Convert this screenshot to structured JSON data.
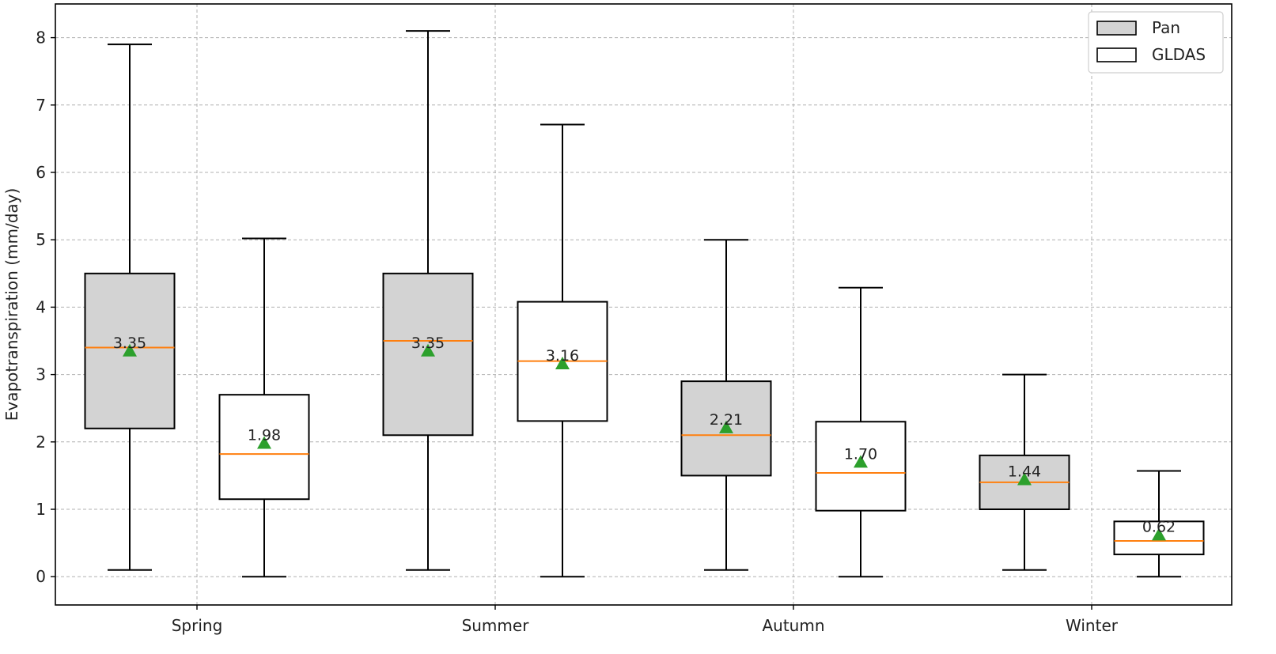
{
  "chart_data": {
    "type": "boxplot",
    "title": "",
    "xlabel": "",
    "ylabel": "Evapotranspiration (mm/day)",
    "ylim": [
      -0.42,
      8.5
    ],
    "yticks": [
      0,
      1,
      2,
      3,
      4,
      5,
      6,
      7,
      8
    ],
    "grid": true,
    "legend_position": "top-right",
    "categories": [
      "Spring",
      "Summer",
      "Autumn",
      "Winter"
    ],
    "series": [
      {
        "name": "Pan",
        "fill": "#d3d3d3",
        "boxes": [
          {
            "whisker_low": 0.1,
            "q1": 2.2,
            "median": 3.4,
            "q3": 4.5,
            "whisker_high": 7.9,
            "mean": 3.35,
            "mean_label": "3.35"
          },
          {
            "whisker_low": 0.1,
            "q1": 2.1,
            "median": 3.5,
            "q3": 4.5,
            "whisker_high": 8.1,
            "mean": 3.35,
            "mean_label": "3.35"
          },
          {
            "whisker_low": 0.1,
            "q1": 1.5,
            "median": 2.1,
            "q3": 2.9,
            "whisker_high": 5.0,
            "mean": 2.21,
            "mean_label": "2.21"
          },
          {
            "whisker_low": 0.1,
            "q1": 1.0,
            "median": 1.4,
            "q3": 1.8,
            "whisker_high": 3.0,
            "mean": 1.44,
            "mean_label": "1.44"
          }
        ]
      },
      {
        "name": "GLDAS",
        "fill": "#ffffff",
        "boxes": [
          {
            "whisker_low": 0.0,
            "q1": 1.15,
            "median": 1.82,
            "q3": 2.7,
            "whisker_high": 5.02,
            "mean": 1.98,
            "mean_label": "1.98"
          },
          {
            "whisker_low": 0.0,
            "q1": 2.31,
            "median": 3.2,
            "q3": 4.08,
            "whisker_high": 6.71,
            "mean": 3.16,
            "mean_label": "3.16"
          },
          {
            "whisker_low": 0.0,
            "q1": 0.98,
            "median": 1.54,
            "q3": 2.3,
            "whisker_high": 4.29,
            "mean": 1.7,
            "mean_label": "1.70"
          },
          {
            "whisker_low": 0.0,
            "q1": 0.33,
            "median": 0.53,
            "q3": 0.82,
            "whisker_high": 1.57,
            "mean": 0.62,
            "mean_label": "0.62"
          }
        ]
      }
    ],
    "colors": {
      "median": "#ff7f0e",
      "mean_marker": "#2ca02c",
      "box_edge": "#000000",
      "grid": "#b0b0b0"
    }
  }
}
